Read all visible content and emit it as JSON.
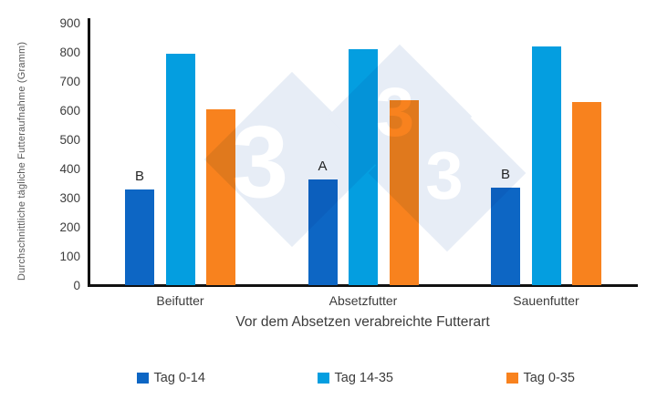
{
  "chart_data": {
    "type": "bar",
    "title": "",
    "categories": [
      "Beifutter",
      "Absetzfutter",
      "Sauenfutter"
    ],
    "series": [
      {
        "name": "Tag 0-14",
        "color": "#0D66C4",
        "values": [
          330,
          365,
          335
        ]
      },
      {
        "name": "Tag 14-35",
        "color": "#049EE0",
        "values": [
          795,
          810,
          820
        ]
      },
      {
        "name": "Tag 0-35",
        "color": "#F8821E",
        "values": [
          605,
          635,
          630
        ]
      }
    ],
    "significance_labels": [
      "B",
      "A",
      "B"
    ],
    "significance_series": "Tag 0-14",
    "xlabel": "Vor dem Absetzen verabreichte Futterart",
    "ylabel": "Durchschnittliche tägliche Futteraufnahme (Gramm)",
    "ylim": [
      0,
      900
    ],
    "yticks": [
      0,
      100,
      200,
      300,
      400,
      500,
      600,
      700,
      800,
      900
    ],
    "grid": false,
    "legend_position": "bottom"
  },
  "watermark": {
    "glyph": "3",
    "diamond_color": "#E7EDF6"
  }
}
